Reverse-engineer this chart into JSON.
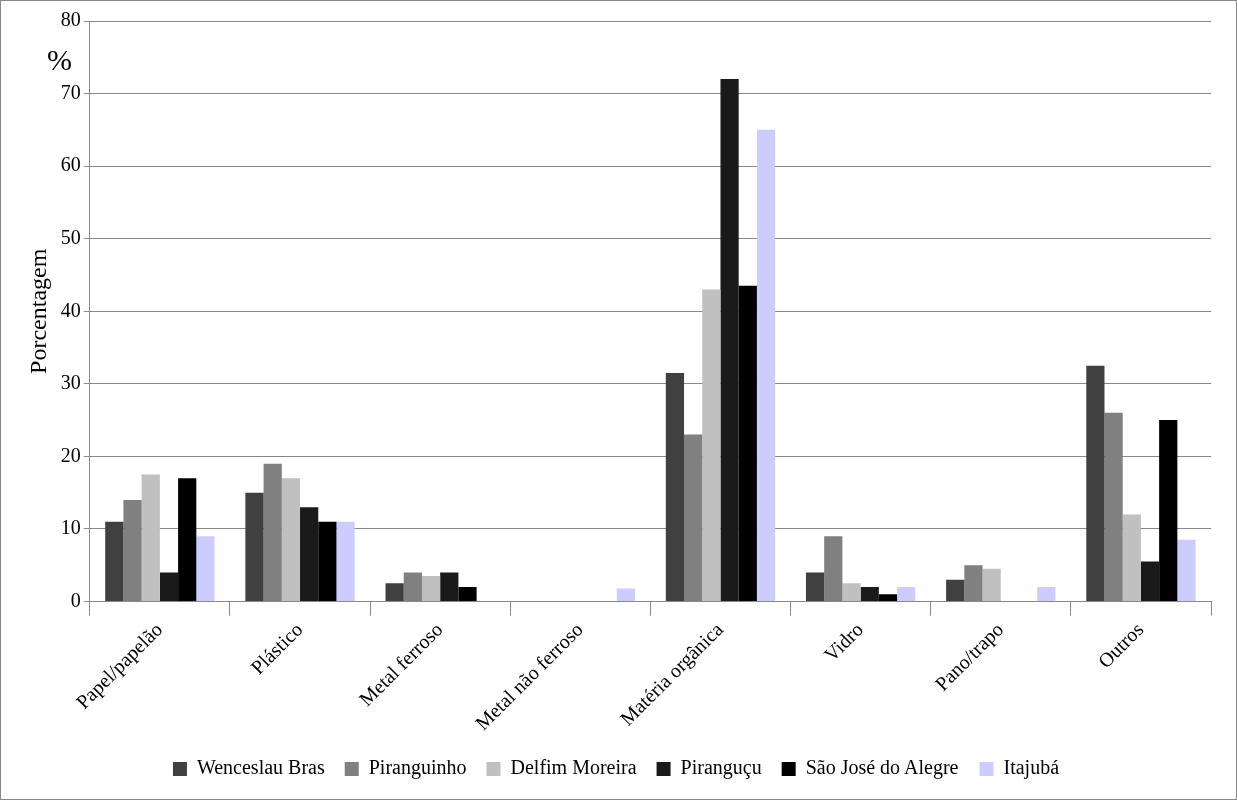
{
  "chart_data": {
    "type": "bar",
    "ylabel": "Porcentagem",
    "annotations": [
      "%"
    ],
    "categories": [
      "Papel/papelão",
      "Plástico",
      "Metal ferroso",
      "Metal não ferroso",
      "Matéria orgânica",
      "Vidro",
      "Pano/trapo",
      "Outros"
    ],
    "series": [
      {
        "name": "Wenceslau Bras",
        "color": "#404040",
        "values": [
          11,
          15,
          2.5,
          0,
          31.5,
          4,
          3,
          32.5
        ]
      },
      {
        "name": "Piranguinho",
        "color": "#808080",
        "values": [
          14,
          19,
          4,
          0,
          23,
          9,
          5,
          26
        ]
      },
      {
        "name": "Delfim Moreira",
        "color": "#c0c0c0",
        "values": [
          17.5,
          17,
          3.5,
          0,
          43,
          2.5,
          4.5,
          12
        ]
      },
      {
        "name": "Piranguçu",
        "color": "#1a1a1a",
        "values": [
          4,
          13,
          4,
          0,
          72,
          2,
          0,
          5.5
        ]
      },
      {
        "name": "São José do Alegre",
        "color": "#000000",
        "values": [
          17,
          11,
          2,
          0,
          43.5,
          1,
          0,
          25
        ]
      },
      {
        "name": "Itajubá",
        "color": "#ccccff",
        "values": [
          9,
          11,
          null,
          1.8,
          65,
          2,
          2,
          8.5
        ]
      }
    ],
    "ylim": [
      0,
      80
    ],
    "yticks": [
      0,
      10,
      20,
      30,
      40,
      50,
      60,
      70,
      80
    ],
    "grid": "y",
    "legend": "bottom"
  }
}
